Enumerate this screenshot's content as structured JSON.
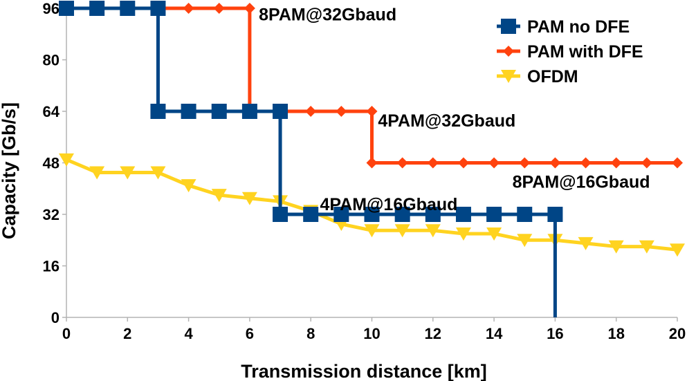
{
  "chart_data": {
    "type": "line",
    "title": "",
    "xlabel": "Transmission distance [km]",
    "ylabel": "Capacity [Gb/s]",
    "xlim": [
      0,
      20
    ],
    "ylim": [
      0,
      96
    ],
    "x_ticks": [
      0,
      2,
      4,
      6,
      8,
      10,
      12,
      14,
      16,
      18,
      20
    ],
    "y_ticks": [
      0,
      16,
      32,
      48,
      64,
      80,
      96
    ],
    "grid": false,
    "legend_position": "top-right",
    "series": [
      {
        "name": "PAM no DFE",
        "color": "#004586",
        "marker": "square",
        "step": true,
        "x": [
          0,
          1,
          2,
          3,
          3,
          4,
          5,
          6,
          7,
          7,
          8,
          9,
          10,
          11,
          12,
          13,
          14,
          15,
          16,
          16
        ],
        "y": [
          96,
          96,
          96,
          96,
          64,
          64,
          64,
          64,
          64,
          32,
          32,
          32,
          32,
          32,
          32,
          32,
          32,
          32,
          32,
          0
        ],
        "markers_at": [
          [
            0,
            96
          ],
          [
            1,
            96
          ],
          [
            2,
            96
          ],
          [
            3,
            96
          ],
          [
            3,
            64
          ],
          [
            4,
            64
          ],
          [
            5,
            64
          ],
          [
            6,
            64
          ],
          [
            7,
            64
          ],
          [
            7,
            32
          ],
          [
            8,
            32
          ],
          [
            9,
            32
          ],
          [
            10,
            32
          ],
          [
            11,
            32
          ],
          [
            12,
            32
          ],
          [
            13,
            32
          ],
          [
            14,
            32
          ],
          [
            15,
            32
          ],
          [
            16,
            32
          ]
        ]
      },
      {
        "name": "PAM with DFE",
        "color": "#ff420e",
        "marker": "diamond",
        "step": true,
        "x": [
          0,
          1,
          2,
          3,
          4,
          5,
          6,
          6,
          7,
          8,
          9,
          10,
          10,
          11,
          12,
          13,
          14,
          15,
          16,
          17,
          18,
          19,
          20
        ],
        "y": [
          96,
          96,
          96,
          96,
          96,
          96,
          96,
          64,
          64,
          64,
          64,
          64,
          48,
          48,
          48,
          48,
          48,
          48,
          48,
          48,
          48,
          48,
          48
        ],
        "markers_at": [
          [
            4,
            96
          ],
          [
            5,
            96
          ],
          [
            6,
            96
          ],
          [
            6,
            64
          ],
          [
            7,
            64
          ],
          [
            8,
            64
          ],
          [
            9,
            64
          ],
          [
            10,
            64
          ],
          [
            10,
            48
          ],
          [
            11,
            48
          ],
          [
            12,
            48
          ],
          [
            13,
            48
          ],
          [
            14,
            48
          ],
          [
            15,
            48
          ],
          [
            16,
            48
          ],
          [
            17,
            48
          ],
          [
            18,
            48
          ],
          [
            19,
            48
          ],
          [
            20,
            48
          ]
        ]
      },
      {
        "name": "OFDM",
        "color": "#ffd320",
        "marker": "triangle-down",
        "step": false,
        "x": [
          0,
          1,
          2,
          3,
          4,
          5,
          6,
          7,
          8,
          9,
          10,
          11,
          12,
          13,
          14,
          15,
          16,
          17,
          18,
          19,
          20
        ],
        "y": [
          49,
          45,
          45,
          45,
          41,
          38,
          37,
          36,
          33,
          29,
          27,
          27,
          27,
          26,
          26,
          24,
          24,
          23,
          22,
          22,
          21
        ],
        "markers_at": [
          [
            0,
            49
          ],
          [
            1,
            45
          ],
          [
            2,
            45
          ],
          [
            3,
            45
          ],
          [
            4,
            41
          ],
          [
            5,
            38
          ],
          [
            6,
            37
          ],
          [
            7,
            36
          ],
          [
            8,
            33
          ],
          [
            9,
            29
          ],
          [
            10,
            27
          ],
          [
            11,
            27
          ],
          [
            12,
            27
          ],
          [
            13,
            26
          ],
          [
            14,
            26
          ],
          [
            15,
            24
          ],
          [
            16,
            24
          ],
          [
            17,
            23
          ],
          [
            18,
            22
          ],
          [
            19,
            22
          ],
          [
            20,
            21
          ]
        ]
      }
    ],
    "annotations": [
      {
        "text": "8PAM@32Gbaud",
        "x": 6.3,
        "y": 94
      },
      {
        "text": "4PAM@32Gbaud",
        "x": 10.2,
        "y": 61
      },
      {
        "text": "8PAM@16Gbaud",
        "x": 14.6,
        "y": 42
      },
      {
        "text": "4PAM@16Gbaud",
        "x": 8.3,
        "y": 35
      }
    ]
  }
}
